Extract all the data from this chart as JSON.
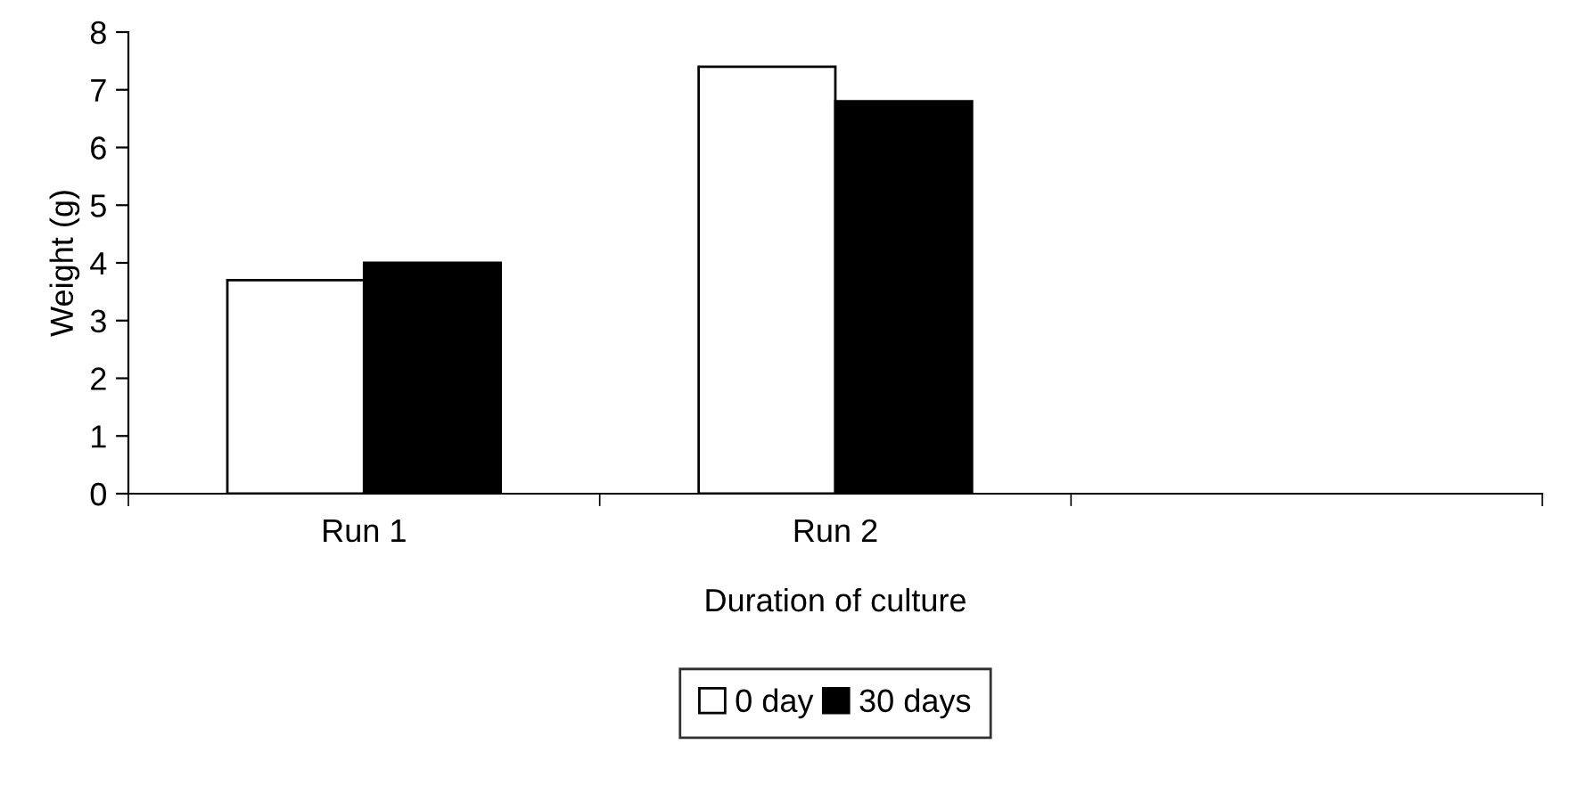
{
  "chart_data": {
    "type": "bar",
    "xlabel": "Duration of culture",
    "ylabel": "Weight (g)",
    "categories": [
      "Run 1",
      "Run 2",
      null
    ],
    "series": [
      {
        "name": "0 day",
        "color": "#ffffff",
        "values": [
          3.7,
          7.4,
          null
        ]
      },
      {
        "name": "30 days",
        "color": "#000000",
        "values": [
          4.0,
          6.8,
          null
        ]
      }
    ],
    "ylim": [
      0,
      8
    ],
    "yticks": [
      0,
      1,
      2,
      3,
      4,
      5,
      6,
      7,
      8
    ],
    "grid": false,
    "legend": "bottom"
  }
}
